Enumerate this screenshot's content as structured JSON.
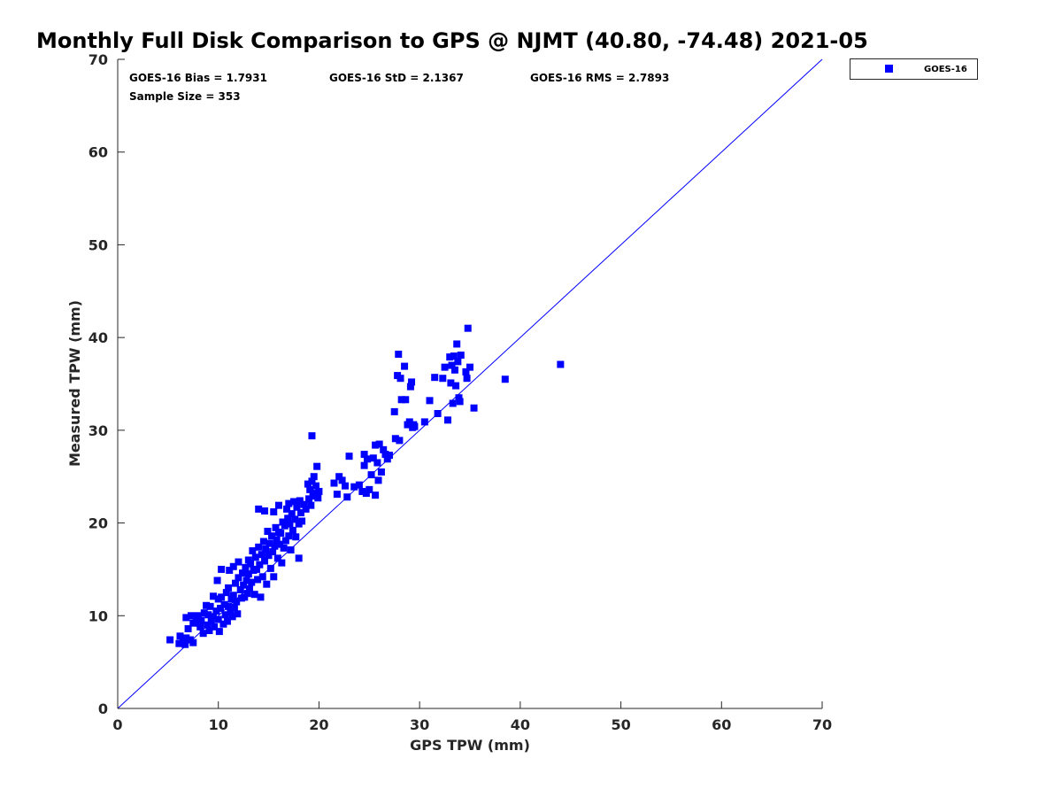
{
  "chart_data": {
    "type": "scatter",
    "title": "Monthly Full Disk Comparison to GPS @ NJMT (40.80, -74.48) 2021-05",
    "xlabel": "GPS TPW (mm)",
    "ylabel": "Measured TPW (mm)",
    "xlim": [
      0,
      70
    ],
    "ylim": [
      0,
      70
    ],
    "xticks": [
      "0",
      "10",
      "20",
      "30",
      "40",
      "50",
      "60",
      "70"
    ],
    "yticks": [
      "0",
      "10",
      "20",
      "30",
      "40",
      "50",
      "60",
      "70"
    ],
    "grid": false,
    "legend_position": "outside-top-right",
    "reference_line": {
      "from": [
        0,
        0
      ],
      "to": [
        70,
        70
      ],
      "color": "#0000ff"
    },
    "stats": {
      "bias": "GOES-16 Bias = 1.7931",
      "std": "GOES-16 StD = 2.1367",
      "rms": "GOES-16 RMS = 2.7893",
      "sample": "Sample Size = 353"
    },
    "series": [
      {
        "name": "GOES-16",
        "color": "#0000ff",
        "marker": "square",
        "points": [
          [
            5.2,
            7.4
          ],
          [
            6.1,
            7.0
          ],
          [
            6.2,
            7.8
          ],
          [
            6.5,
            7.3
          ],
          [
            6.7,
            6.9
          ],
          [
            6.8,
            7.6
          ],
          [
            6.8,
            9.8
          ],
          [
            7.0,
            8.6
          ],
          [
            7.2,
            7.4
          ],
          [
            7.3,
            10.0
          ],
          [
            7.5,
            9.2
          ],
          [
            7.5,
            7.1
          ],
          [
            7.8,
            9.8
          ],
          [
            8.0,
            10.0
          ],
          [
            8.1,
            9.2
          ],
          [
            8.2,
            8.8
          ],
          [
            8.3,
            9.5
          ],
          [
            8.5,
            8.1
          ],
          [
            8.6,
            10.3
          ],
          [
            8.8,
            11.1
          ],
          [
            8.9,
            9.0
          ],
          [
            9.0,
            10.1
          ],
          [
            9.1,
            8.4
          ],
          [
            9.2,
            11.0
          ],
          [
            9.3,
            9.4
          ],
          [
            9.5,
            9.9
          ],
          [
            9.5,
            12.1
          ],
          [
            9.6,
            8.8
          ],
          [
            9.8,
            10.5
          ],
          [
            9.9,
            13.8
          ],
          [
            10.0,
            9.6
          ],
          [
            10.0,
            11.8
          ],
          [
            10.1,
            8.3
          ],
          [
            10.2,
            10.8
          ],
          [
            10.3,
            12.0
          ],
          [
            10.3,
            15.0
          ],
          [
            10.5,
            9.1
          ],
          [
            10.6,
            11.2
          ],
          [
            10.7,
            10.1
          ],
          [
            10.8,
            12.5
          ],
          [
            10.9,
            9.4
          ],
          [
            11.0,
            11.0
          ],
          [
            11.0,
            13.0
          ],
          [
            11.1,
            14.9
          ],
          [
            11.2,
            10.4
          ],
          [
            11.3,
            11.8
          ],
          [
            11.4,
            9.9
          ],
          [
            11.5,
            12.2
          ],
          [
            11.5,
            15.3
          ],
          [
            11.6,
            10.9
          ],
          [
            11.7,
            13.5
          ],
          [
            11.8,
            11.5
          ],
          [
            11.9,
            10.2
          ],
          [
            12.0,
            14.1
          ],
          [
            12.0,
            15.8
          ],
          [
            12.2,
            12.8
          ],
          [
            12.3,
            11.9
          ],
          [
            12.4,
            14.6
          ],
          [
            12.5,
            13.3
          ],
          [
            12.6,
            12.0
          ],
          [
            12.7,
            15.2
          ],
          [
            12.8,
            13.8
          ],
          [
            12.9,
            12.4
          ],
          [
            13.0,
            14.5
          ],
          [
            13.0,
            16.0
          ],
          [
            13.1,
            12.9
          ],
          [
            13.2,
            15.6
          ],
          [
            13.3,
            13.6
          ],
          [
            13.4,
            17.0
          ],
          [
            13.5,
            14.9
          ],
          [
            13.6,
            12.3
          ],
          [
            13.7,
            16.3
          ],
          [
            13.8,
            15.0
          ],
          [
            13.9,
            13.9
          ],
          [
            14.0,
            17.4
          ],
          [
            14.0,
            21.5
          ],
          [
            14.1,
            15.5
          ],
          [
            14.2,
            12.0
          ],
          [
            14.3,
            16.6
          ],
          [
            14.4,
            14.2
          ],
          [
            14.5,
            18.0
          ],
          [
            14.6,
            15.9
          ],
          [
            14.6,
            21.3
          ],
          [
            14.7,
            17.2
          ],
          [
            14.8,
            13.4
          ],
          [
            14.9,
            19.1
          ],
          [
            15.0,
            16.5
          ],
          [
            15.1,
            17.8
          ],
          [
            15.2,
            15.1
          ],
          [
            15.3,
            18.6
          ],
          [
            15.4,
            16.9
          ],
          [
            15.5,
            14.2
          ],
          [
            15.5,
            21.2
          ],
          [
            15.6,
            17.5
          ],
          [
            15.7,
            19.5
          ],
          [
            15.8,
            18.2
          ],
          [
            15.9,
            16.2
          ],
          [
            16.0,
            19.0
          ],
          [
            16.0,
            21.9
          ],
          [
            16.1,
            17.7
          ],
          [
            16.2,
            18.9
          ],
          [
            16.3,
            15.7
          ],
          [
            16.4,
            20.1
          ],
          [
            16.5,
            17.3
          ],
          [
            16.6,
            19.7
          ],
          [
            16.7,
            18.1
          ],
          [
            16.8,
            21.5
          ],
          [
            16.9,
            20.5
          ],
          [
            17.0,
            18.6
          ],
          [
            17.0,
            22.1
          ],
          [
            17.1,
            19.9
          ],
          [
            17.2,
            17.1
          ],
          [
            17.3,
            21.0
          ],
          [
            17.4,
            19.2
          ],
          [
            17.5,
            22.3
          ],
          [
            17.6,
            20.4
          ],
          [
            17.7,
            18.5
          ],
          [
            17.8,
            21.7
          ],
          [
            18.0,
            16.2
          ],
          [
            18.0,
            19.9
          ],
          [
            18.1,
            22.4
          ],
          [
            18.2,
            21.1
          ],
          [
            18.3,
            20.2
          ],
          [
            18.5,
            22.0
          ],
          [
            18.7,
            21.5
          ],
          [
            18.9,
            24.2
          ],
          [
            19.0,
            22.6
          ],
          [
            19.1,
            23.6
          ],
          [
            19.2,
            21.9
          ],
          [
            19.3,
            24.5
          ],
          [
            19.3,
            29.4
          ],
          [
            19.4,
            22.9
          ],
          [
            19.5,
            25.0
          ],
          [
            19.6,
            23.2
          ],
          [
            19.7,
            24.0
          ],
          [
            19.8,
            26.1
          ],
          [
            19.9,
            22.7
          ],
          [
            20.0,
            23.4
          ],
          [
            21.5,
            24.3
          ],
          [
            21.8,
            23.1
          ],
          [
            22.0,
            25.0
          ],
          [
            22.3,
            24.6
          ],
          [
            22.6,
            24.0
          ],
          [
            22.8,
            22.8
          ],
          [
            23.0,
            27.2
          ],
          [
            23.5,
            23.9
          ],
          [
            24.0,
            24.1
          ],
          [
            24.3,
            23.4
          ],
          [
            24.5,
            26.2
          ],
          [
            24.5,
            27.4
          ],
          [
            24.7,
            23.2
          ],
          [
            24.8,
            26.9
          ],
          [
            25.0,
            23.6
          ],
          [
            25.2,
            25.2
          ],
          [
            25.4,
            27.0
          ],
          [
            25.6,
            28.4
          ],
          [
            25.6,
            23.0
          ],
          [
            25.8,
            26.5
          ],
          [
            25.9,
            24.6
          ],
          [
            26.0,
            28.5
          ],
          [
            26.2,
            25.5
          ],
          [
            26.4,
            27.9
          ],
          [
            26.6,
            27.4
          ],
          [
            26.8,
            26.9
          ],
          [
            27.0,
            27.3
          ],
          [
            27.5,
            32.0
          ],
          [
            27.6,
            29.1
          ],
          [
            27.8,
            35.9
          ],
          [
            27.9,
            38.2
          ],
          [
            28.0,
            28.9
          ],
          [
            28.1,
            35.6
          ],
          [
            28.2,
            33.3
          ],
          [
            28.5,
            36.9
          ],
          [
            28.6,
            33.3
          ],
          [
            28.8,
            30.6
          ],
          [
            29.0,
            30.9
          ],
          [
            29.1,
            34.7
          ],
          [
            29.2,
            35.2
          ],
          [
            29.3,
            30.3
          ],
          [
            29.4,
            30.6
          ],
          [
            29.5,
            30.4
          ],
          [
            30.5,
            30.9
          ],
          [
            31.0,
            33.2
          ],
          [
            31.5,
            35.7
          ],
          [
            31.8,
            31.8
          ],
          [
            32.3,
            35.6
          ],
          [
            32.5,
            36.8
          ],
          [
            32.8,
            31.1
          ],
          [
            33.0,
            37.9
          ],
          [
            33.1,
            35.1
          ],
          [
            33.2,
            37.0
          ],
          [
            33.3,
            32.9
          ],
          [
            33.4,
            38.0
          ],
          [
            33.5,
            36.5
          ],
          [
            33.6,
            34.8
          ],
          [
            33.7,
            39.3
          ],
          [
            33.8,
            37.4
          ],
          [
            33.9,
            33.5
          ],
          [
            34.0,
            33.1
          ],
          [
            34.1,
            38.1
          ],
          [
            34.6,
            36.3
          ],
          [
            34.7,
            35.6
          ],
          [
            34.8,
            41.0
          ],
          [
            35.0,
            36.8
          ],
          [
            35.4,
            32.4
          ],
          [
            38.5,
            35.5
          ],
          [
            44.0,
            37.1
          ]
        ]
      }
    ]
  }
}
